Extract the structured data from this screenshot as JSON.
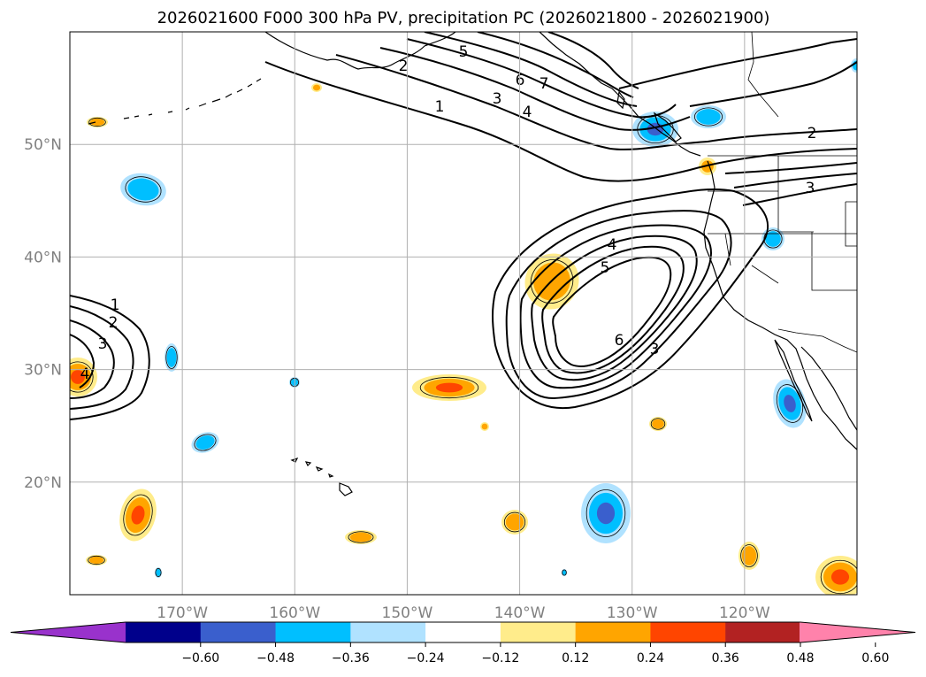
{
  "title": "2026021600 F000 300 hPa PV, precipitation PC (2026021800 - 2026021900)",
  "map": {
    "lon_range": [
      -180,
      -110
    ],
    "lat_range": [
      10,
      60
    ],
    "lon_ticks": [
      {
        "value": -170,
        "label": "170°W"
      },
      {
        "value": -160,
        "label": "160°W"
      },
      {
        "value": -150,
        "label": "150°W"
      },
      {
        "value": -140,
        "label": "140°W"
      },
      {
        "value": -130,
        "label": "130°W"
      },
      {
        "value": -120,
        "label": "120°W"
      }
    ],
    "lat_ticks": [
      {
        "value": 20,
        "label": "20°N"
      },
      {
        "value": 30,
        "label": "30°N"
      },
      {
        "value": 40,
        "label": "40°N"
      },
      {
        "value": 50,
        "label": "50°N"
      }
    ],
    "grid": true,
    "contour_labels": [
      "1",
      "2",
      "3",
      "4",
      "5",
      "6",
      "7"
    ]
  },
  "colorbar": {
    "colors": [
      "#9932cc",
      "#00008b",
      "#3a5fcd",
      "#00bfff",
      "#b0e2ff",
      "#ffffff",
      "#ffec8b",
      "#ffa500",
      "#ff4500",
      "#b22222",
      "#ff82ab"
    ],
    "tick_labels": [
      "−0.60",
      "−0.48",
      "−0.36",
      "−0.24",
      "−0.12",
      "0.12",
      "0.24",
      "0.36",
      "0.48",
      "0.60"
    ],
    "extend": "both"
  }
}
